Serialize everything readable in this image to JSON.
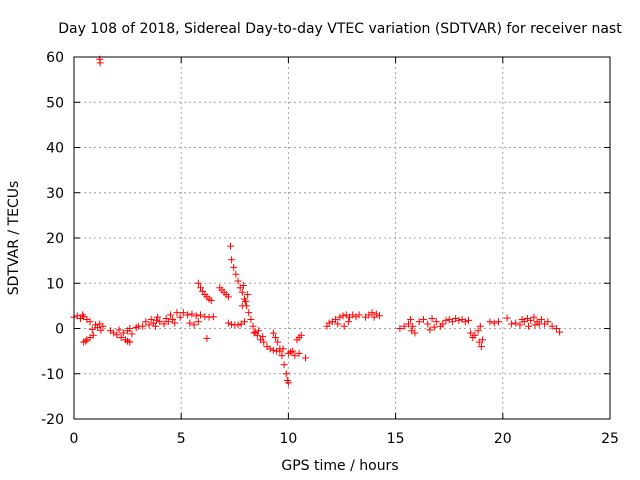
{
  "chart_data": {
    "type": "scatter",
    "title": "Day 108 of 2018, Sidereal Day-to-day VTEC variation (SDTVAR) for receiver nast",
    "xlabel": "GPS time / hours",
    "ylabel": "SDTVAR / TECUs",
    "xlim": [
      0,
      25
    ],
    "ylim": [
      -20,
      60
    ],
    "xticks": [
      "0",
      "5",
      "10",
      "15",
      "20",
      "25"
    ],
    "yticks": [
      "-20",
      "-10",
      "0",
      "10",
      "20",
      "30",
      "40",
      "50",
      "60"
    ],
    "grid": true,
    "marker": "+",
    "color": "#ff0000",
    "series": [
      {
        "name": "SDTVAR",
        "points": [
          [
            0.0,
            2.5
          ],
          [
            0.15,
            2.8
          ],
          [
            0.3,
            2.2
          ],
          [
            0.45,
            2.6
          ],
          [
            0.6,
            2.0
          ],
          [
            0.75,
            1.5
          ],
          [
            0.4,
            3.0
          ],
          [
            0.45,
            -3.0
          ],
          [
            0.6,
            -2.5
          ],
          [
            0.75,
            -2.0
          ],
          [
            0.9,
            -1.5
          ],
          [
            0.55,
            -2.8
          ],
          [
            0.85,
            -0.2
          ],
          [
            1.0,
            0.8
          ],
          [
            1.1,
            0.2
          ],
          [
            1.25,
            -0.4
          ],
          [
            1.35,
            0.5
          ],
          [
            1.2,
            1.0
          ],
          [
            1.2,
            59.5
          ],
          [
            1.22,
            58.7
          ],
          [
            1.7,
            -0.5
          ],
          [
            1.85,
            -1.0
          ],
          [
            2.0,
            -1.4
          ],
          [
            2.1,
            -0.3
          ],
          [
            2.2,
            -2.0
          ],
          [
            2.3,
            -1.0
          ],
          [
            2.4,
            -2.5
          ],
          [
            2.5,
            -2.8
          ],
          [
            2.6,
            -3.0
          ],
          [
            2.5,
            -0.5
          ],
          [
            2.6,
            0.0
          ],
          [
            2.7,
            -1.2
          ],
          [
            2.9,
            0.2
          ],
          [
            3.0,
            0.5
          ],
          [
            3.2,
            0.5
          ],
          [
            3.35,
            1.5
          ],
          [
            3.5,
            0.8
          ],
          [
            3.6,
            2.0
          ],
          [
            3.7,
            1.2
          ],
          [
            3.8,
            0.5
          ],
          [
            3.85,
            1.8
          ],
          [
            3.9,
            2.5
          ],
          [
            4.0,
            1.5
          ],
          [
            4.2,
            1.0
          ],
          [
            4.3,
            2.2
          ],
          [
            4.4,
            1.5
          ],
          [
            4.5,
            3.0
          ],
          [
            4.6,
            2.0
          ],
          [
            4.7,
            1.2
          ],
          [
            4.8,
            3.5
          ],
          [
            4.95,
            2.5
          ],
          [
            5.1,
            3.5
          ],
          [
            5.3,
            3.0
          ],
          [
            5.5,
            3.2
          ],
          [
            5.7,
            2.8
          ],
          [
            5.9,
            3.0
          ],
          [
            6.1,
            2.6
          ],
          [
            6.3,
            2.5
          ],
          [
            6.5,
            2.6
          ],
          [
            5.4,
            1.2
          ],
          [
            5.6,
            0.8
          ],
          [
            5.8,
            1.5
          ],
          [
            6.2,
            -2.2
          ],
          [
            5.8,
            10.0
          ],
          [
            5.9,
            9.0
          ],
          [
            6.0,
            8.2
          ],
          [
            6.1,
            7.5
          ],
          [
            6.2,
            7.0
          ],
          [
            6.3,
            6.5
          ],
          [
            6.4,
            6.2
          ],
          [
            6.8,
            9.0
          ],
          [
            6.9,
            8.5
          ],
          [
            7.0,
            8.0
          ],
          [
            7.1,
            7.5
          ],
          [
            7.2,
            7.0
          ],
          [
            7.2,
            1.2
          ],
          [
            7.35,
            0.9
          ],
          [
            7.5,
            0.8
          ],
          [
            7.65,
            0.8
          ],
          [
            7.8,
            1.0
          ],
          [
            7.95,
            1.5
          ],
          [
            7.3,
            18.2
          ],
          [
            7.35,
            15.2
          ],
          [
            7.45,
            13.5
          ],
          [
            7.55,
            12.0
          ],
          [
            7.65,
            10.5
          ],
          [
            7.75,
            9.0
          ],
          [
            7.85,
            8.0
          ],
          [
            7.95,
            6.5
          ],
          [
            8.05,
            5.0
          ],
          [
            8.15,
            3.5
          ],
          [
            8.25,
            2.0
          ],
          [
            8.35,
            0.5
          ],
          [
            8.45,
            -0.8
          ],
          [
            8.55,
            -1.5
          ],
          [
            8.7,
            -2.5
          ],
          [
            8.85,
            -3.0
          ],
          [
            9.0,
            -4.0
          ],
          [
            9.15,
            -4.5
          ],
          [
            9.3,
            -4.8
          ],
          [
            9.45,
            -5.0
          ],
          [
            9.6,
            -5.0
          ],
          [
            9.75,
            -4.5
          ],
          [
            7.9,
            9.5
          ],
          [
            8.0,
            6.0
          ],
          [
            7.85,
            5.0
          ],
          [
            8.1,
            7.5
          ],
          [
            8.4,
            -1.0
          ],
          [
            8.6,
            -0.5
          ],
          [
            8.8,
            -1.8
          ],
          [
            9.3,
            -1.0
          ],
          [
            9.4,
            -2.0
          ],
          [
            9.5,
            -3.0
          ],
          [
            9.6,
            -4.5
          ],
          [
            9.7,
            -6.0
          ],
          [
            9.8,
            -8.0
          ],
          [
            9.9,
            -10.0
          ],
          [
            9.95,
            -11.5
          ],
          [
            10.0,
            -12.0
          ],
          [
            10.0,
            -5.5
          ],
          [
            10.1,
            -5.2
          ],
          [
            10.2,
            -5.0
          ],
          [
            10.4,
            -2.5
          ],
          [
            10.5,
            -2.0
          ],
          [
            10.6,
            -1.5
          ],
          [
            10.3,
            -6.0
          ],
          [
            10.5,
            -5.5
          ],
          [
            10.8,
            -6.5
          ],
          [
            11.8,
            0.5
          ],
          [
            11.9,
            1.2
          ],
          [
            12.05,
            1.5
          ],
          [
            12.2,
            2.0
          ],
          [
            12.3,
            1.0
          ],
          [
            12.4,
            2.5
          ],
          [
            12.55,
            2.8
          ],
          [
            12.7,
            3.0
          ],
          [
            12.85,
            2.5
          ],
          [
            13.0,
            3.0
          ],
          [
            13.15,
            2.6
          ],
          [
            13.3,
            3.0
          ],
          [
            12.6,
            0.5
          ],
          [
            12.8,
            1.5
          ],
          [
            13.6,
            2.5
          ],
          [
            13.75,
            3.0
          ],
          [
            13.9,
            3.5
          ],
          [
            14.0,
            2.5
          ],
          [
            14.1,
            3.2
          ],
          [
            14.25,
            2.8
          ],
          [
            15.2,
            0.0
          ],
          [
            15.4,
            0.5
          ],
          [
            15.6,
            1.0
          ],
          [
            15.7,
            2.0
          ],
          [
            15.8,
            0.5
          ],
          [
            15.9,
            -1.0
          ],
          [
            15.75,
            -0.5
          ],
          [
            16.1,
            1.5
          ],
          [
            16.3,
            2.0
          ],
          [
            16.5,
            1.0
          ],
          [
            16.7,
            2.2
          ],
          [
            16.9,
            1.5
          ],
          [
            17.1,
            0.5
          ],
          [
            16.6,
            -0.3
          ],
          [
            16.8,
            0.3
          ],
          [
            17.2,
            1.0
          ],
          [
            17.35,
            1.8
          ],
          [
            17.5,
            2.0
          ],
          [
            17.65,
            1.5
          ],
          [
            17.8,
            2.2
          ],
          [
            17.95,
            1.8
          ],
          [
            18.1,
            2.0
          ],
          [
            18.25,
            1.5
          ],
          [
            18.4,
            1.8
          ],
          [
            18.5,
            -1.0
          ],
          [
            18.6,
            -2.0
          ],
          [
            18.7,
            -1.5
          ],
          [
            18.85,
            -0.5
          ],
          [
            18.95,
            0.5
          ],
          [
            19.05,
            -2.5
          ],
          [
            19.0,
            -4.0
          ],
          [
            18.9,
            -3.0
          ],
          [
            19.4,
            1.5
          ],
          [
            19.6,
            1.2
          ],
          [
            19.8,
            1.5
          ],
          [
            20.2,
            2.3
          ],
          [
            20.4,
            1.0
          ],
          [
            20.6,
            1.2
          ],
          [
            20.8,
            0.8
          ],
          [
            20.9,
            2.0
          ],
          [
            21.0,
            1.5
          ],
          [
            21.15,
            2.2
          ],
          [
            21.3,
            1.8
          ],
          [
            21.45,
            2.5
          ],
          [
            21.6,
            1.5
          ],
          [
            21.8,
            2.0
          ],
          [
            21.95,
            1.0
          ],
          [
            22.1,
            1.5
          ],
          [
            22.3,
            0.5
          ],
          [
            22.5,
            0.0
          ],
          [
            22.65,
            -0.8
          ],
          [
            21.2,
            0.5
          ],
          [
            21.5,
            0.8
          ],
          [
            21.7,
            1.0
          ]
        ]
      }
    ]
  }
}
